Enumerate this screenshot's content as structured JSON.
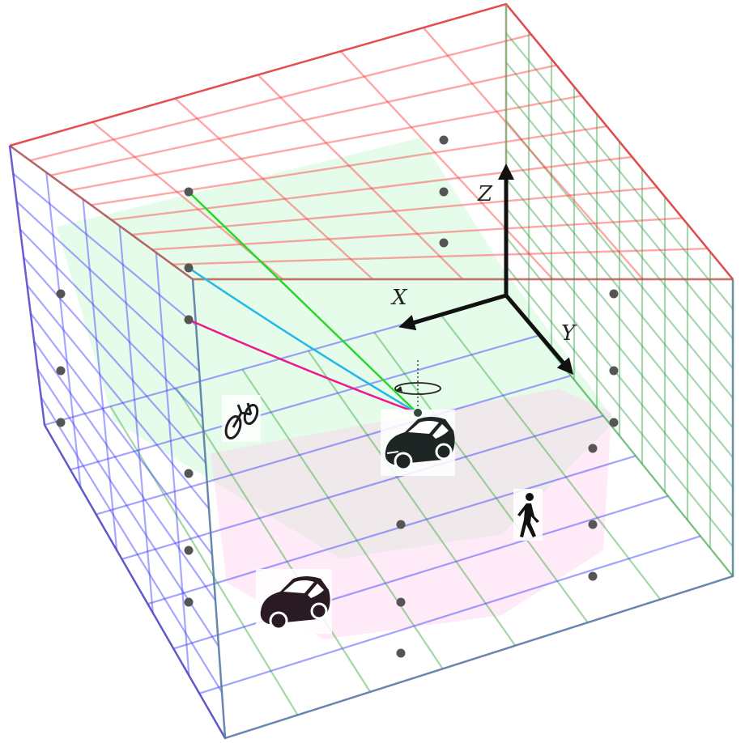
{
  "axes": {
    "x_label": "X",
    "y_label": "Y",
    "z_label": "Z"
  },
  "colors": {
    "top_grid": "#ff3b3b",
    "right_wall_grid": "#3fa34d",
    "left_wall_grid": "#3b3bff",
    "floor_grid_blue": "#4646ff",
    "floor_grid_green": "#4caf50",
    "axis_color": "#111111",
    "ray_green": "#2ad62a",
    "ray_cyan": "#22b8e8",
    "ray_magenta": "#ee1a8c",
    "sensor_point": "#555555",
    "highlight_green": "#b6f5c6",
    "highlight_pink": "#ffc6ea"
  },
  "scene_objects": [
    {
      "name": "ego-car-icon",
      "kind": "car"
    },
    {
      "name": "car-icon",
      "kind": "car"
    },
    {
      "name": "bicycle-icon",
      "kind": "bicycle"
    },
    {
      "name": "pedestrian-icon",
      "kind": "pedestrian"
    }
  ]
}
